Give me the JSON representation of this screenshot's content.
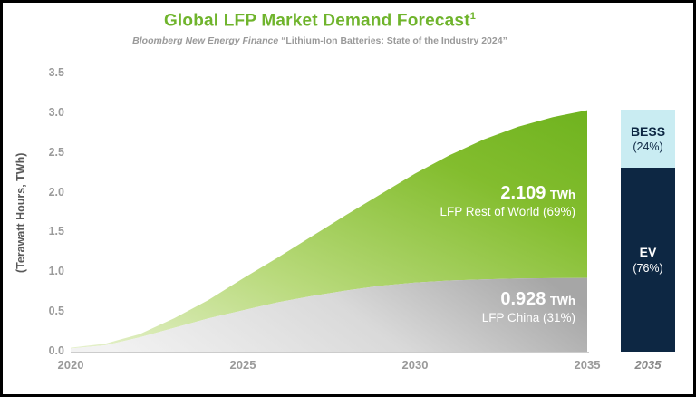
{
  "header": {
    "title": "Global LFP Market Demand Forecast",
    "title_sup": "1",
    "subtitle_source": "Bloomberg New Energy Finance",
    "subtitle_report": "“Lithium-Ion Batteries: State of the Industry 2024”"
  },
  "axis": {
    "ylabel": "(Terawatt Hours, TWh)"
  },
  "annotations": {
    "row_value": "2.109",
    "row_unit": "TWh",
    "row_label": "LFP Rest of World (69%)",
    "china_value": "0.928",
    "china_unit": "TWh",
    "china_label": "LFP China (31%)"
  },
  "bar": {
    "year_label": "2035",
    "segments": [
      {
        "name": "BESS",
        "label": "BESS",
        "pct_label": "(24%)",
        "pct": 24,
        "color": "#c9ecf2",
        "text_color": "#0d2743"
      },
      {
        "name": "EV",
        "label": "EV",
        "pct_label": "(76%)",
        "pct": 76,
        "color": "#0d2743",
        "text_color": "#ffffff"
      }
    ]
  },
  "colors": {
    "title_green": "#6fb42c",
    "green_dark": "#6fb31f",
    "green_light": "#e2efc7",
    "gray_dark": "#a6a6a6",
    "gray_light": "#f0f0f0",
    "navy": "#0d2743",
    "cyan": "#c9ecf2"
  },
  "chart_data": {
    "type": "area",
    "title": "Global LFP Market Demand Forecast",
    "subtitle": "Bloomberg New Energy Finance “Lithium-Ion Batteries: State of the Industry 2024”",
    "ylabel": "(Terawatt Hours, TWh)",
    "xlabel": "",
    "ylim": [
      0,
      3.5
    ],
    "yticks": [
      0.0,
      0.5,
      1.0,
      1.5,
      2.0,
      2.5,
      3.0,
      3.5
    ],
    "xticks": [
      2020,
      2025,
      2030,
      2035
    ],
    "grid": false,
    "legend": "none",
    "x": [
      2020,
      2021,
      2022,
      2023,
      2024,
      2025,
      2026,
      2027,
      2028,
      2029,
      2030,
      2031,
      2032,
      2033,
      2034,
      2035
    ],
    "series": [
      {
        "name": "LFP China",
        "share_pct": 31,
        "value_2035_twh": 0.928,
        "values": [
          0.04,
          0.08,
          0.18,
          0.3,
          0.42,
          0.52,
          0.62,
          0.7,
          0.77,
          0.83,
          0.87,
          0.895,
          0.91,
          0.92,
          0.925,
          0.928
        ]
      },
      {
        "name": "LFP Rest of World",
        "share_pct": 69,
        "value_2035_twh": 2.109,
        "values": [
          0.01,
          0.02,
          0.04,
          0.12,
          0.23,
          0.4,
          0.56,
          0.75,
          0.95,
          1.15,
          1.37,
          1.575,
          1.76,
          1.91,
          2.025,
          2.109
        ]
      }
    ],
    "bar_2035": {
      "year": 2035,
      "segments": [
        {
          "name": "BESS",
          "pct": 24
        },
        {
          "name": "EV",
          "pct": 76
        }
      ]
    }
  }
}
